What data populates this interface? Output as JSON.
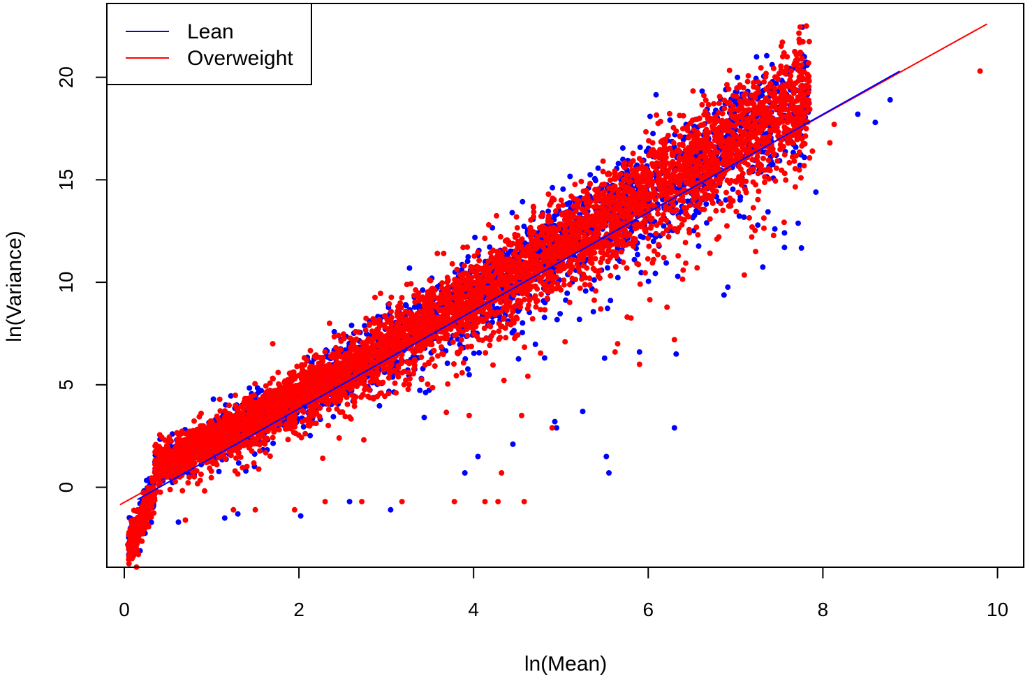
{
  "chart_data": {
    "type": "scatter",
    "title": "",
    "xlabel": "ln(Mean)",
    "ylabel": "ln(Variance)",
    "xlim": [
      -0.2,
      10.3
    ],
    "ylim": [
      -3.9,
      23.6
    ],
    "xticks": [
      0,
      2,
      4,
      6,
      8,
      10
    ],
    "yticks": [
      0,
      5,
      10,
      15,
      20
    ],
    "grid": false,
    "legend": {
      "position": "top-left",
      "entries": [
        {
          "name": "Lean",
          "color": "#0000ff"
        },
        {
          "name": "Overweight",
          "color": "#ff0000"
        }
      ]
    },
    "series": [
      {
        "name": "Lean",
        "color": "#0000ff",
        "trend_line": {
          "x": [
            0.15,
            8.88
          ],
          "y": [
            -0.6,
            20.3
          ]
        },
        "outliers": [
          [
            8.77,
            18.9
          ],
          [
            8.4,
            18.2
          ],
          [
            8.6,
            17.8
          ],
          [
            7.92,
            14.4
          ],
          [
            7.56,
            11.7
          ],
          [
            7.45,
            12.6
          ],
          [
            5.57,
            14.6
          ],
          [
            5.6,
            13.9
          ],
          [
            5.33,
            14.2
          ],
          [
            4.72,
            12.4
          ],
          [
            4.55,
            11.9
          ],
          [
            5.5,
            6.3
          ],
          [
            5.9,
            6.6
          ],
          [
            6.32,
            6.5
          ],
          [
            6.3,
            2.9
          ],
          [
            5.52,
            1.5
          ],
          [
            5.55,
            0.7
          ],
          [
            5.25,
            3.7
          ],
          [
            4.95,
            2.9
          ],
          [
            4.93,
            3.2
          ],
          [
            4.45,
            2.1
          ],
          [
            4.05,
            1.5
          ],
          [
            3.9,
            0.7
          ],
          [
            3.05,
            -1.1
          ],
          [
            2.58,
            -0.7
          ],
          [
            2.02,
            -1.4
          ],
          [
            1.3,
            -1.3
          ],
          [
            1.15,
            -1.5
          ],
          [
            0.62,
            -1.7
          ],
          [
            0.05,
            -2.9
          ],
          [
            6.4,
            15.6
          ],
          [
            5.7,
            15.3
          ],
          [
            4.9,
            14.0
          ],
          [
            1.02,
            4.3
          ],
          [
            0.55,
            2.6
          ]
        ]
      },
      {
        "name": "Overweight",
        "color": "#ff0000",
        "trend_line": {
          "x": [
            -0.05,
            9.88
          ],
          "y": [
            -0.85,
            22.6
          ]
        },
        "outliers": [
          [
            9.8,
            20.3
          ],
          [
            8.13,
            17.7
          ],
          [
            8.08,
            16.8
          ],
          [
            7.88,
            16.4
          ],
          [
            7.23,
            11.5
          ],
          [
            6.3,
            7.2
          ],
          [
            5.62,
            6.6
          ],
          [
            5.9,
            6.0
          ],
          [
            5.65,
            7.0
          ],
          [
            4.32,
            0.7
          ],
          [
            4.58,
            -0.7
          ],
          [
            4.28,
            -0.7
          ],
          [
            4.13,
            -0.7
          ],
          [
            3.78,
            -0.7
          ],
          [
            3.18,
            -0.7
          ],
          [
            2.72,
            -0.7
          ],
          [
            2.3,
            -0.7
          ],
          [
            1.95,
            -1.1
          ],
          [
            1.5,
            -1.1
          ],
          [
            1.25,
            -1.1
          ],
          [
            0.7,
            -1.6
          ],
          [
            4.9,
            2.9
          ],
          [
            4.55,
            3.5
          ],
          [
            3.95,
            3.5
          ],
          [
            0.04,
            -2.8
          ],
          [
            0.1,
            -2.4
          ],
          [
            6.35,
            15.7
          ],
          [
            5.8,
            15.2
          ],
          [
            2.35,
            8.0
          ],
          [
            1.7,
            7.0
          ]
        ]
      }
    ]
  }
}
